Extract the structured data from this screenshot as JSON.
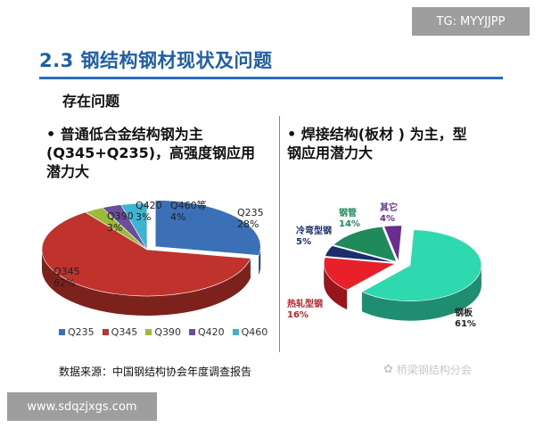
{
  "header": {
    "title": "2.3 钢结构钢材现状及问题",
    "subtitle": "存在问题"
  },
  "left": {
    "bullet": "•  普通低合金结构钢为主(Q345+Q235)，高强度钢应用潜力大",
    "chart_data": {
      "type": "pie",
      "categories": [
        "Q235",
        "Q345",
        "Q390",
        "Q420",
        "Q460等"
      ],
      "values": [
        28,
        62,
        3,
        3,
        4
      ],
      "labels": [
        "Q235\n28%",
        "Q345\n62%",
        "Q390\n3%",
        "Q420\n3%",
        "Q460等\n4%"
      ],
      "legend": [
        "Q235",
        "Q345",
        "Q390",
        "Q420",
        "Q460"
      ],
      "colors": [
        "#3b6fb6",
        "#c0332d",
        "#9bbb3b",
        "#6a4d9b",
        "#3fb3cf"
      ],
      "legend_position": "bottom"
    }
  },
  "right": {
    "bullet": "•  焊接结构(板材 ) 为主，型钢应用潜力大",
    "chart_data": {
      "type": "pie",
      "categories": [
        "钢板",
        "热轧型钢",
        "冷弯型钢",
        "钢管",
        "其它"
      ],
      "values": [
        61,
        16,
        5,
        14,
        4
      ],
      "labels": [
        "钢板\n61%",
        "热轧型钢\n16%",
        "冷弯型钢\n5%",
        "钢管\n14%",
        "其它\n4%"
      ],
      "colors": [
        "#2fd9b0",
        "#e8202a",
        "#1c2d6b",
        "#1f8a5a",
        "#6a2d8f"
      ]
    }
  },
  "source": "数据来源：中国钢结构协会年度调查报告",
  "watermark": "桥梁钢结构分会",
  "badges": {
    "top_right": "TG: MYYJJPP",
    "bottom_left": "www.sdqzjxgs.com"
  }
}
